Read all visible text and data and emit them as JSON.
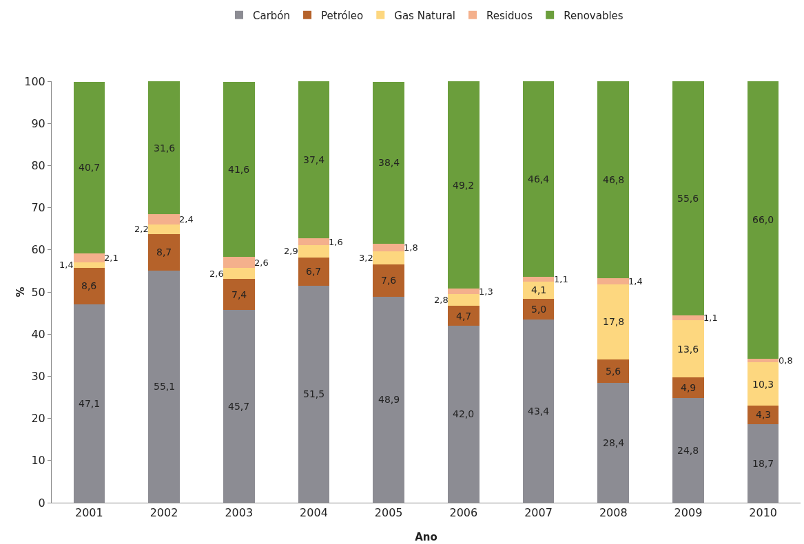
{
  "chart_data": {
    "type": "bar",
    "stacked": true,
    "xlabel": "Ano",
    "ylabel": "%",
    "legend": "top",
    "grid": false,
    "categories": [
      "2001",
      "2002",
      "2003",
      "2004",
      "2005",
      "2006",
      "2007",
      "2008",
      "2009",
      "2010"
    ],
    "ylim": [
      0,
      100
    ],
    "yticks": [
      0,
      10,
      20,
      30,
      40,
      50,
      60,
      70,
      80,
      90,
      100
    ],
    "series": [
      {
        "name": "Carbón",
        "color": "#8c8c93",
        "values": [
          47.1,
          55.1,
          45.7,
          51.5,
          48.9,
          42.0,
          43.4,
          28.4,
          24.8,
          18.7
        ],
        "value_labels": [
          "47,1",
          "55,1",
          "45,7",
          "51,5",
          "48,9",
          "42,0",
          "43,4",
          "28,4",
          "24,8",
          "18,7"
        ]
      },
      {
        "name": "Petróleo",
        "color": "#b5622a",
        "values": [
          8.6,
          8.7,
          7.4,
          6.7,
          7.6,
          4.7,
          5.0,
          5.6,
          4.9,
          4.3
        ],
        "value_labels": [
          "8,6",
          "8,7",
          "7,4",
          "6,7",
          "7,6",
          "4,7",
          "5,0",
          "5,6",
          "4,9",
          "4,3"
        ]
      },
      {
        "name": "Gas Natural",
        "color": "#fdd77f",
        "values": [
          1.4,
          2.2,
          2.6,
          2.9,
          3.2,
          2.8,
          4.1,
          17.8,
          13.6,
          10.3
        ],
        "value_labels": [
          "1,4",
          "2,2",
          "2,6",
          "2,9",
          "3,2",
          "2,8",
          "4,1",
          "17,8",
          "13,6",
          "10,3"
        ]
      },
      {
        "name": "Residuos",
        "color": "#f4b08c",
        "values": [
          2.1,
          2.4,
          2.6,
          1.6,
          1.8,
          1.3,
          1.1,
          1.4,
          1.1,
          0.8
        ],
        "value_labels": [
          "2,1",
          "2,4",
          "2,6",
          "1,6",
          "1,8",
          "1,3",
          "1,1",
          "1,4",
          "1,1",
          "0,8"
        ]
      },
      {
        "name": "Renovables",
        "color": "#6b9e3c",
        "values": [
          40.7,
          31.6,
          41.6,
          37.4,
          38.4,
          49.2,
          46.4,
          46.8,
          55.6,
          66.0
        ],
        "value_labels": [
          "40,7",
          "31,6",
          "41,6",
          "37,4",
          "38,4",
          "49,2",
          "46,4",
          "46,8",
          "55,6",
          "66,0"
        ]
      }
    ]
  }
}
